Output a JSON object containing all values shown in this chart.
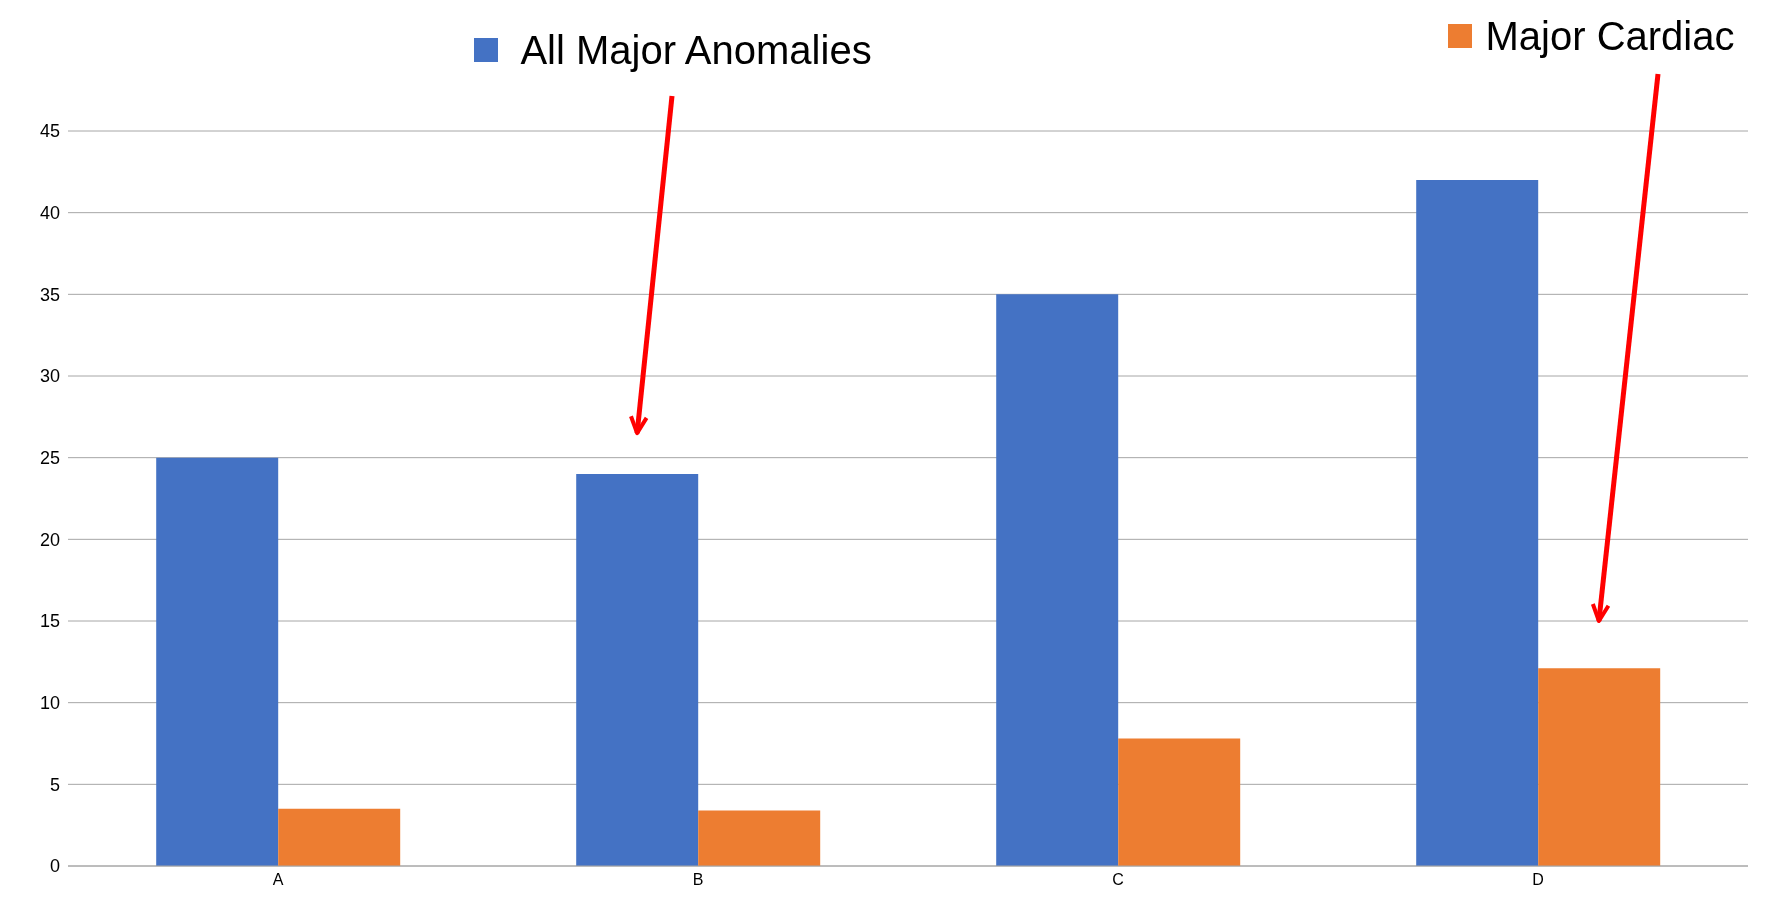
{
  "chart_data": {
    "type": "bar",
    "categories": [
      "A",
      "B",
      "C",
      "D"
    ],
    "series": [
      {
        "name": "All Major Anomalies",
        "color": "#4472c4",
        "values": [
          25,
          24,
          35,
          42
        ]
      },
      {
        "name": "Major Cardiac",
        "color": "#ed7d31",
        "values": [
          3.5,
          3.4,
          7.8,
          12.1
        ]
      }
    ],
    "ylim": [
      0,
      45
    ],
    "yticks": [
      0,
      5,
      10,
      15,
      20,
      25,
      30,
      35,
      40,
      45
    ],
    "grid": "y",
    "legend": "top"
  }
}
